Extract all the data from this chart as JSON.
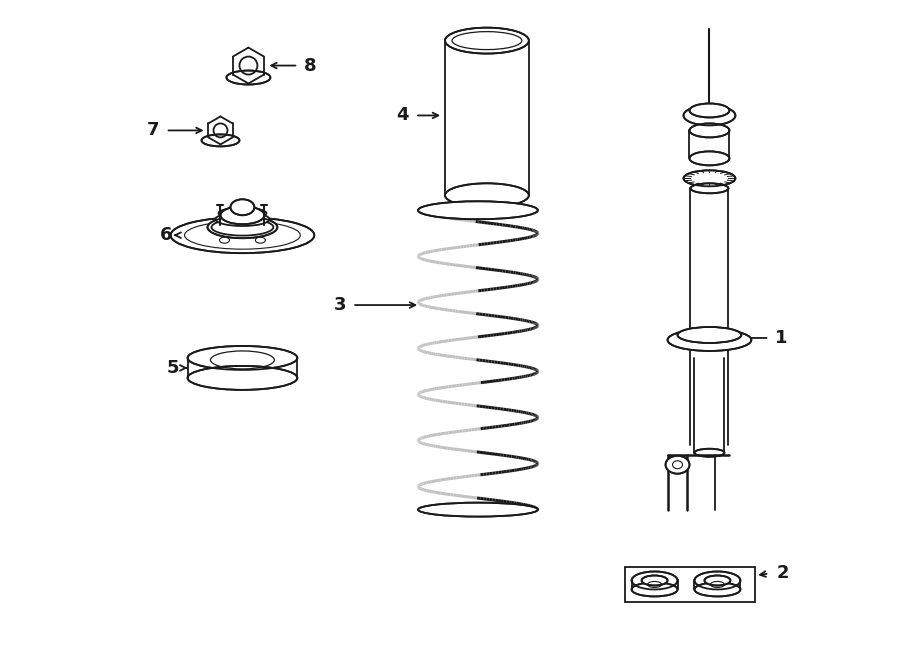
{
  "bg_color": "#ffffff",
  "line_color": "#1a1a1a",
  "lw": 1.3,
  "fig_width": 9.0,
  "fig_height": 6.61
}
